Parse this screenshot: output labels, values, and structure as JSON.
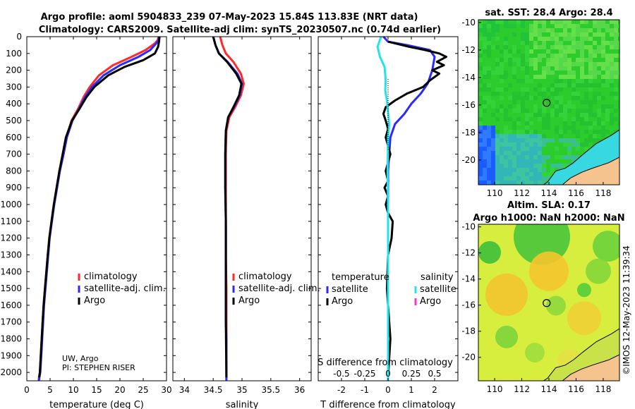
{
  "header": {
    "line1": "Argo profile: aoml 5904833_239 07-May-2023 15.84S 113.83E (NRT data)",
    "line2": "Climatology: CARS2009. Satellite-adj clim: synTS_20230507.nc (0.74d earlier)"
  },
  "footer_stamp": "©IMOS 12-May-2023 11:39:34",
  "colors": {
    "climatology": "#ff2a2a",
    "satellite": "#2a2aff",
    "argo": "#000000",
    "salinity_satellite": "#22e4ea",
    "salinity_argo": "#ff33cc",
    "sst_green": "#2ccf2c",
    "sla_yellow": "#e7ee40",
    "land": "#f5c38e"
  },
  "chart_data": [
    {
      "id": "temperature-profile",
      "type": "line",
      "xlabel": "temperature (deg C)",
      "ylabel": "",
      "xlim": [
        0,
        30
      ],
      "ylim": [
        2050,
        0
      ],
      "xticks": [
        0,
        5,
        10,
        15,
        20,
        25,
        30
      ],
      "yticks": [
        0,
        100,
        200,
        300,
        400,
        500,
        600,
        700,
        800,
        900,
        1000,
        1100,
        1200,
        1300,
        1400,
        1500,
        1600,
        1700,
        1800,
        1900,
        2000
      ],
      "legend": [
        "climatology",
        "satellite-adj. clim.",
        "Argo"
      ],
      "credit_1": "UW, Argo",
      "credit_2": "PI: STEPHEN RISER",
      "series": [
        {
          "name": "climatology",
          "color": "#ff2a2a",
          "x": [
            28.3,
            28.1,
            27.5,
            25.5,
            22.5,
            18.5,
            15.5,
            13.5,
            12.2,
            11.0,
            9.6,
            8.5,
            7.8,
            7.0,
            6.4,
            5.8,
            5.3,
            4.8,
            4.5,
            4.2,
            3.9,
            3.6,
            3.4,
            3.2,
            3.0,
            2.8,
            2.6,
            2.55
          ],
          "y": [
            0,
            20,
            40,
            80,
            120,
            170,
            230,
            300,
            360,
            430,
            500,
            600,
            700,
            800,
            900,
            1000,
            1100,
            1200,
            1300,
            1400,
            1500,
            1600,
            1700,
            1800,
            1900,
            2000,
            2030,
            2050
          ]
        },
        {
          "name": "satellite-adj. clim.",
          "color": "#2a2aff",
          "x": [
            28.4,
            28.3,
            27.8,
            26.5,
            24.0,
            20.0,
            16.5,
            14.0,
            12.5,
            11.2,
            9.8,
            8.6,
            7.9,
            7.1,
            6.5,
            5.9,
            5.4,
            4.9,
            4.6,
            4.3,
            4.0,
            3.7,
            3.5,
            3.3,
            3.1,
            2.9,
            2.7,
            2.6
          ],
          "y": [
            0,
            20,
            40,
            80,
            120,
            170,
            230,
            300,
            360,
            430,
            500,
            600,
            700,
            800,
            900,
            1000,
            1100,
            1200,
            1300,
            1400,
            1500,
            1600,
            1700,
            1800,
            1900,
            2000,
            2030,
            2050
          ]
        },
        {
          "name": "Argo",
          "color": "#000000",
          "x": [
            28.5,
            28.4,
            28.2,
            27.5,
            25.0,
            21.0,
            17.5,
            14.5,
            12.8,
            11.3,
            9.7,
            8.4,
            7.7,
            7.0,
            6.4,
            5.8,
            5.3,
            4.85,
            4.5,
            4.2,
            3.9,
            3.6,
            3.4,
            3.2,
            3.0,
            2.8,
            2.65
          ],
          "y": [
            0,
            30,
            60,
            100,
            140,
            180,
            230,
            300,
            360,
            430,
            500,
            600,
            700,
            800,
            900,
            1000,
            1100,
            1200,
            1300,
            1400,
            1500,
            1600,
            1700,
            1800,
            1900,
            2000,
            2030
          ]
        }
      ]
    },
    {
      "id": "salinity-profile",
      "type": "line",
      "xlabel": "salinity",
      "xlim": [
        33.8,
        36.2
      ],
      "ylim": [
        2050,
        0
      ],
      "xticks": [
        34,
        34.5,
        35,
        35.5,
        36
      ],
      "xticklabels": [
        "34",
        "34.5",
        "35",
        "35.5",
        "36"
      ],
      "legend": [
        "climatology",
        "satellite-adj. clim.",
        "Argo"
      ],
      "series": [
        {
          "name": "climatology",
          "color": "#ff2a2a",
          "x": [
            34.62,
            34.66,
            34.72,
            34.85,
            34.98,
            35.03,
            34.98,
            34.88,
            34.78,
            34.73,
            34.72,
            34.72,
            34.72,
            34.72,
            34.73,
            34.73,
            34.73,
            34.73,
            34.73,
            34.73
          ],
          "y": [
            0,
            50,
            100,
            150,
            220,
            280,
            350,
            420,
            480,
            560,
            700,
            900,
            1100,
            1300,
            1500,
            1700,
            1800,
            1900,
            2000,
            2050
          ]
        },
        {
          "name": "satellite-adj. clim.",
          "color": "#2a2aff",
          "x": [
            34.5,
            34.54,
            34.6,
            34.75,
            34.92,
            35.0,
            34.96,
            34.86,
            34.76,
            34.72,
            34.71,
            34.71,
            34.72,
            34.72,
            34.72,
            34.72,
            34.73,
            34.73,
            34.73,
            34.73
          ],
          "y": [
            0,
            50,
            100,
            150,
            220,
            280,
            350,
            420,
            480,
            560,
            700,
            900,
            1100,
            1300,
            1500,
            1700,
            1800,
            1900,
            2000,
            2050
          ]
        },
        {
          "name": "Argo",
          "color": "#000000",
          "x": [
            34.5,
            34.54,
            34.6,
            34.74,
            34.9,
            34.99,
            34.95,
            34.85,
            34.76,
            34.72,
            34.71,
            34.71,
            34.72,
            34.72,
            34.72,
            34.72,
            34.73
          ],
          "y": [
            0,
            50,
            100,
            150,
            220,
            280,
            350,
            420,
            480,
            560,
            700,
            900,
            1100,
            1300,
            1500,
            1700,
            2030
          ]
        }
      ]
    },
    {
      "id": "difference-profile",
      "type": "line",
      "xlabel": "T difference from climatology",
      "xlabel_top": "S difference from climatology",
      "xlim": [
        -3,
        3
      ],
      "ylim": [
        2050,
        0
      ],
      "xticks": [
        -2,
        -1,
        0,
        1,
        2
      ],
      "s_ticklabels": [
        "-0.5",
        "-0.25",
        "0",
        "0.25",
        "0.5"
      ],
      "legend_temperature_title": "temperature",
      "legend_salinity_title": "salinity",
      "legend_temperature": [
        "satellite",
        "Argo"
      ],
      "legend_salinity": [
        "satellite",
        "Argo"
      ],
      "series": [
        {
          "name": "temperature satellite",
          "color": "#2a2aff",
          "x": [
            -0.2,
            0,
            0.8,
            1.8,
            2.0,
            1.9,
            1.7,
            1.4,
            1.0,
            0.7,
            0.3,
            0.1,
            0.0,
            0.0,
            0.0,
            0.0,
            0.0,
            0.0
          ],
          "y": [
            0,
            30,
            50,
            80,
            120,
            200,
            280,
            340,
            400,
            460,
            520,
            600,
            800,
            1000,
            1200,
            1500,
            1800,
            2050
          ]
        },
        {
          "name": "temperature Argo",
          "color": "#000000",
          "x": [
            0,
            0.9,
            1.6,
            2.2,
            2.5,
            2.1,
            2.4,
            1.9,
            2.2,
            1.8,
            1.5,
            0.8,
            0.3,
            -0.1,
            -0.2,
            -0.1,
            0.0,
            -0.1,
            0.0,
            0.1,
            0.0,
            -0.1,
            0.0,
            -0.15,
            0.0,
            -0.1,
            0.0,
            0.2,
            0.15,
            0.0,
            -0.05,
            0.1,
            0.0
          ],
          "y": [
            30,
            60,
            80,
            100,
            120,
            150,
            170,
            200,
            220,
            260,
            300,
            340,
            380,
            420,
            460,
            500,
            550,
            600,
            650,
            700,
            750,
            800,
            860,
            900,
            950,
            1000,
            1050,
            1100,
            1200,
            1300,
            1500,
            1800,
            2030
          ]
        },
        {
          "name": "salinity satellite",
          "color": "#22e4ea",
          "x": [
            -0.3,
            -0.45,
            -0.35,
            -0.15,
            -0.1,
            -0.12,
            -0.05,
            0.0,
            0.05,
            0.0,
            -0.02,
            0.0,
            0.0,
            0.0,
            0.0,
            0.0
          ],
          "y": [
            0,
            60,
            120,
            180,
            260,
            320,
            380,
            450,
            520,
            600,
            800,
            1000,
            1300,
            1600,
            1900,
            2050
          ]
        }
      ]
    },
    {
      "id": "sst-map",
      "type": "heatmap",
      "title": "sat. SST: 28.4 Argo: 28.4",
      "xlim": [
        108.8,
        119.2
      ],
      "ylim": [
        -21.8,
        -9.8
      ],
      "xticks": [
        110,
        112,
        114,
        116,
        118
      ],
      "yticks": [
        -10,
        -12,
        -14,
        -16,
        -18,
        -20
      ],
      "xticklabels": [
        "110",
        "112",
        "114",
        "116",
        "118"
      ],
      "yticklabels": [
        "-10",
        "-12",
        "-14",
        "-16",
        "-18",
        "-20"
      ],
      "marker": {
        "lon": 113.83,
        "lat": -15.84
      }
    },
    {
      "id": "sla-map",
      "type": "heatmap",
      "title_1": "Altim. SLA: 0.17",
      "title_2": "Argo h1000: NaN h2000: NaN",
      "xlim": [
        108.8,
        119.2
      ],
      "ylim": [
        -21.8,
        -9.8
      ],
      "xticks": [
        110,
        112,
        114,
        116,
        118
      ],
      "yticks": [
        -10,
        -12,
        -14,
        -16,
        -18,
        -20
      ],
      "xticklabels": [
        "110",
        "112",
        "114",
        "116",
        "118"
      ],
      "yticklabels": [
        "-10",
        "-12",
        "-14",
        "-16",
        "-18",
        "-20"
      ],
      "marker": {
        "lon": 113.83,
        "lat": -15.84
      }
    }
  ]
}
